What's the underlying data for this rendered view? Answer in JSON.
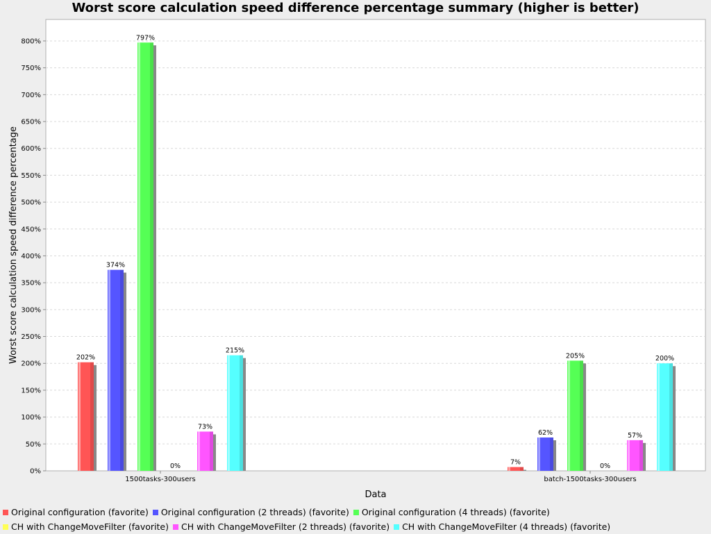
{
  "chart_data": {
    "type": "bar",
    "title": "Worst score calculation speed difference percentage summary (higher is better)",
    "xlabel": "Data",
    "ylabel": "Worst score calculation speed difference percentage",
    "categories": [
      "1500tasks-300users",
      "batch-1500tasks-300users"
    ],
    "ylim": [
      0,
      840
    ],
    "yticks": [
      "0%",
      "50%",
      "100%",
      "150%",
      "200%",
      "250%",
      "300%",
      "350%",
      "400%",
      "450%",
      "500%",
      "550%",
      "600%",
      "650%",
      "700%",
      "750%",
      "800%"
    ],
    "grid": true,
    "legend_position": "bottom",
    "series": [
      {
        "name": "Original configuration (favorite)",
        "color": "#ff5555",
        "values": [
          202,
          7
        ],
        "labels": [
          "202%",
          "7%"
        ]
      },
      {
        "name": "Original configuration (2 threads) (favorite)",
        "color": "#5555ff",
        "values": [
          374,
          62
        ],
        "labels": [
          "374%",
          "62%"
        ]
      },
      {
        "name": "Original configuration (4 threads) (favorite)",
        "color": "#55ff55",
        "values": [
          797,
          205
        ],
        "labels": [
          "797%",
          "205%"
        ]
      },
      {
        "name": "CH with ChangeMoveFilter (favorite)",
        "color": "#ffff55",
        "values": [
          0,
          0
        ],
        "labels": [
          "0%",
          "0%"
        ]
      },
      {
        "name": "CH with ChangeMoveFilter (2 threads) (favorite)",
        "color": "#ff55ff",
        "values": [
          73,
          57
        ],
        "labels": [
          "73%",
          "57%"
        ]
      },
      {
        "name": "CH with ChangeMoveFilter (4 threads) (favorite)",
        "color": "#55ffff",
        "values": [
          215,
          200
        ],
        "labels": [
          "215%",
          "200%"
        ]
      }
    ]
  }
}
